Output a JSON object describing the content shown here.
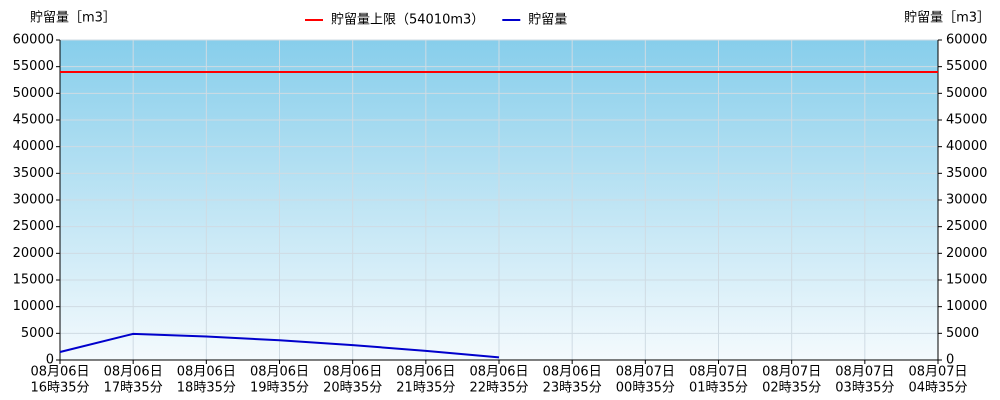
{
  "chart_data": {
    "type": "line",
    "y_label": "貯留量［m3］",
    "y2_label": "貯留量［m3］",
    "categories": [
      [
        "08月06日",
        "16時35分"
      ],
      [
        "08月06日",
        "17時35分"
      ],
      [
        "08月06日",
        "18時35分"
      ],
      [
        "08月06日",
        "19時35分"
      ],
      [
        "08月06日",
        "20時35分"
      ],
      [
        "08月06日",
        "21時35分"
      ],
      [
        "08月06日",
        "22時35分"
      ],
      [
        "08月06日",
        "23時35分"
      ],
      [
        "08月07日",
        "00時35分"
      ],
      [
        "08月07日",
        "01時35分"
      ],
      [
        "08月07日",
        "02時35分"
      ],
      [
        "08月07日",
        "03時35分"
      ],
      [
        "08月07日",
        "04時35分"
      ]
    ],
    "series": [
      {
        "name": "貯留量上限（54010m3）",
        "color": "#ff0000",
        "values": [
          54010,
          54010,
          54010,
          54010,
          54010,
          54010,
          54010,
          54010,
          54010,
          54010,
          54010,
          54010,
          54010
        ]
      },
      {
        "name": "貯留量",
        "color": "#0000cc",
        "values": [
          1500,
          4900,
          4400,
          3700,
          2800,
          1700,
          500,
          null,
          null,
          null,
          null,
          null,
          null
        ]
      }
    ],
    "ylim": [
      0,
      60000
    ],
    "yticks": [
      0,
      5000,
      10000,
      15000,
      20000,
      25000,
      30000,
      35000,
      40000,
      45000,
      50000,
      55000,
      60000
    ],
    "y2lim": [
      0,
      60000
    ],
    "y2ticks": [
      0,
      5000,
      10000,
      15000,
      20000,
      25000,
      30000,
      35000,
      40000,
      45000,
      50000,
      55000,
      60000
    ],
    "grid": true
  }
}
